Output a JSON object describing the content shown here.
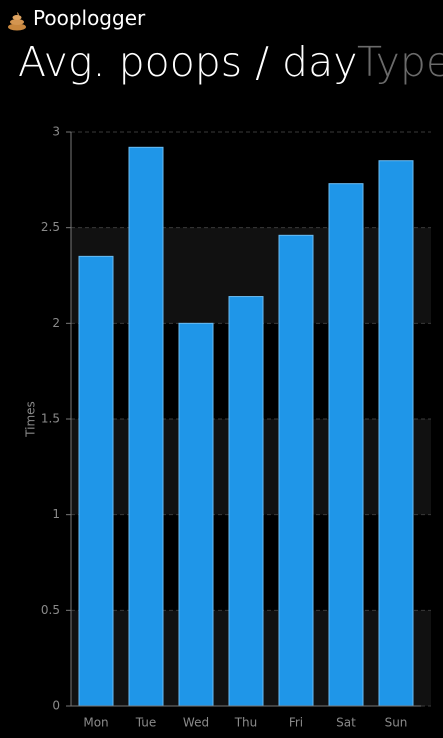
{
  "app_title": "Pooplogger",
  "pivot": [
    "Avg. poops / day",
    "Type"
  ],
  "chart_data": {
    "type": "bar",
    "ylabel": "Times",
    "categories": [
      "Mon",
      "Tue",
      "Wed",
      "Thu",
      "Fri",
      "Sat",
      "Sun"
    ],
    "values": [
      2.35,
      2.92,
      2.0,
      2.14,
      2.46,
      2.73,
      2.85
    ],
    "color": "#1f96e8",
    "ylim": [
      0,
      3
    ],
    "yticks": [
      0,
      0.5,
      1,
      1.5,
      2,
      2.5,
      3
    ],
    "grid": true
  }
}
